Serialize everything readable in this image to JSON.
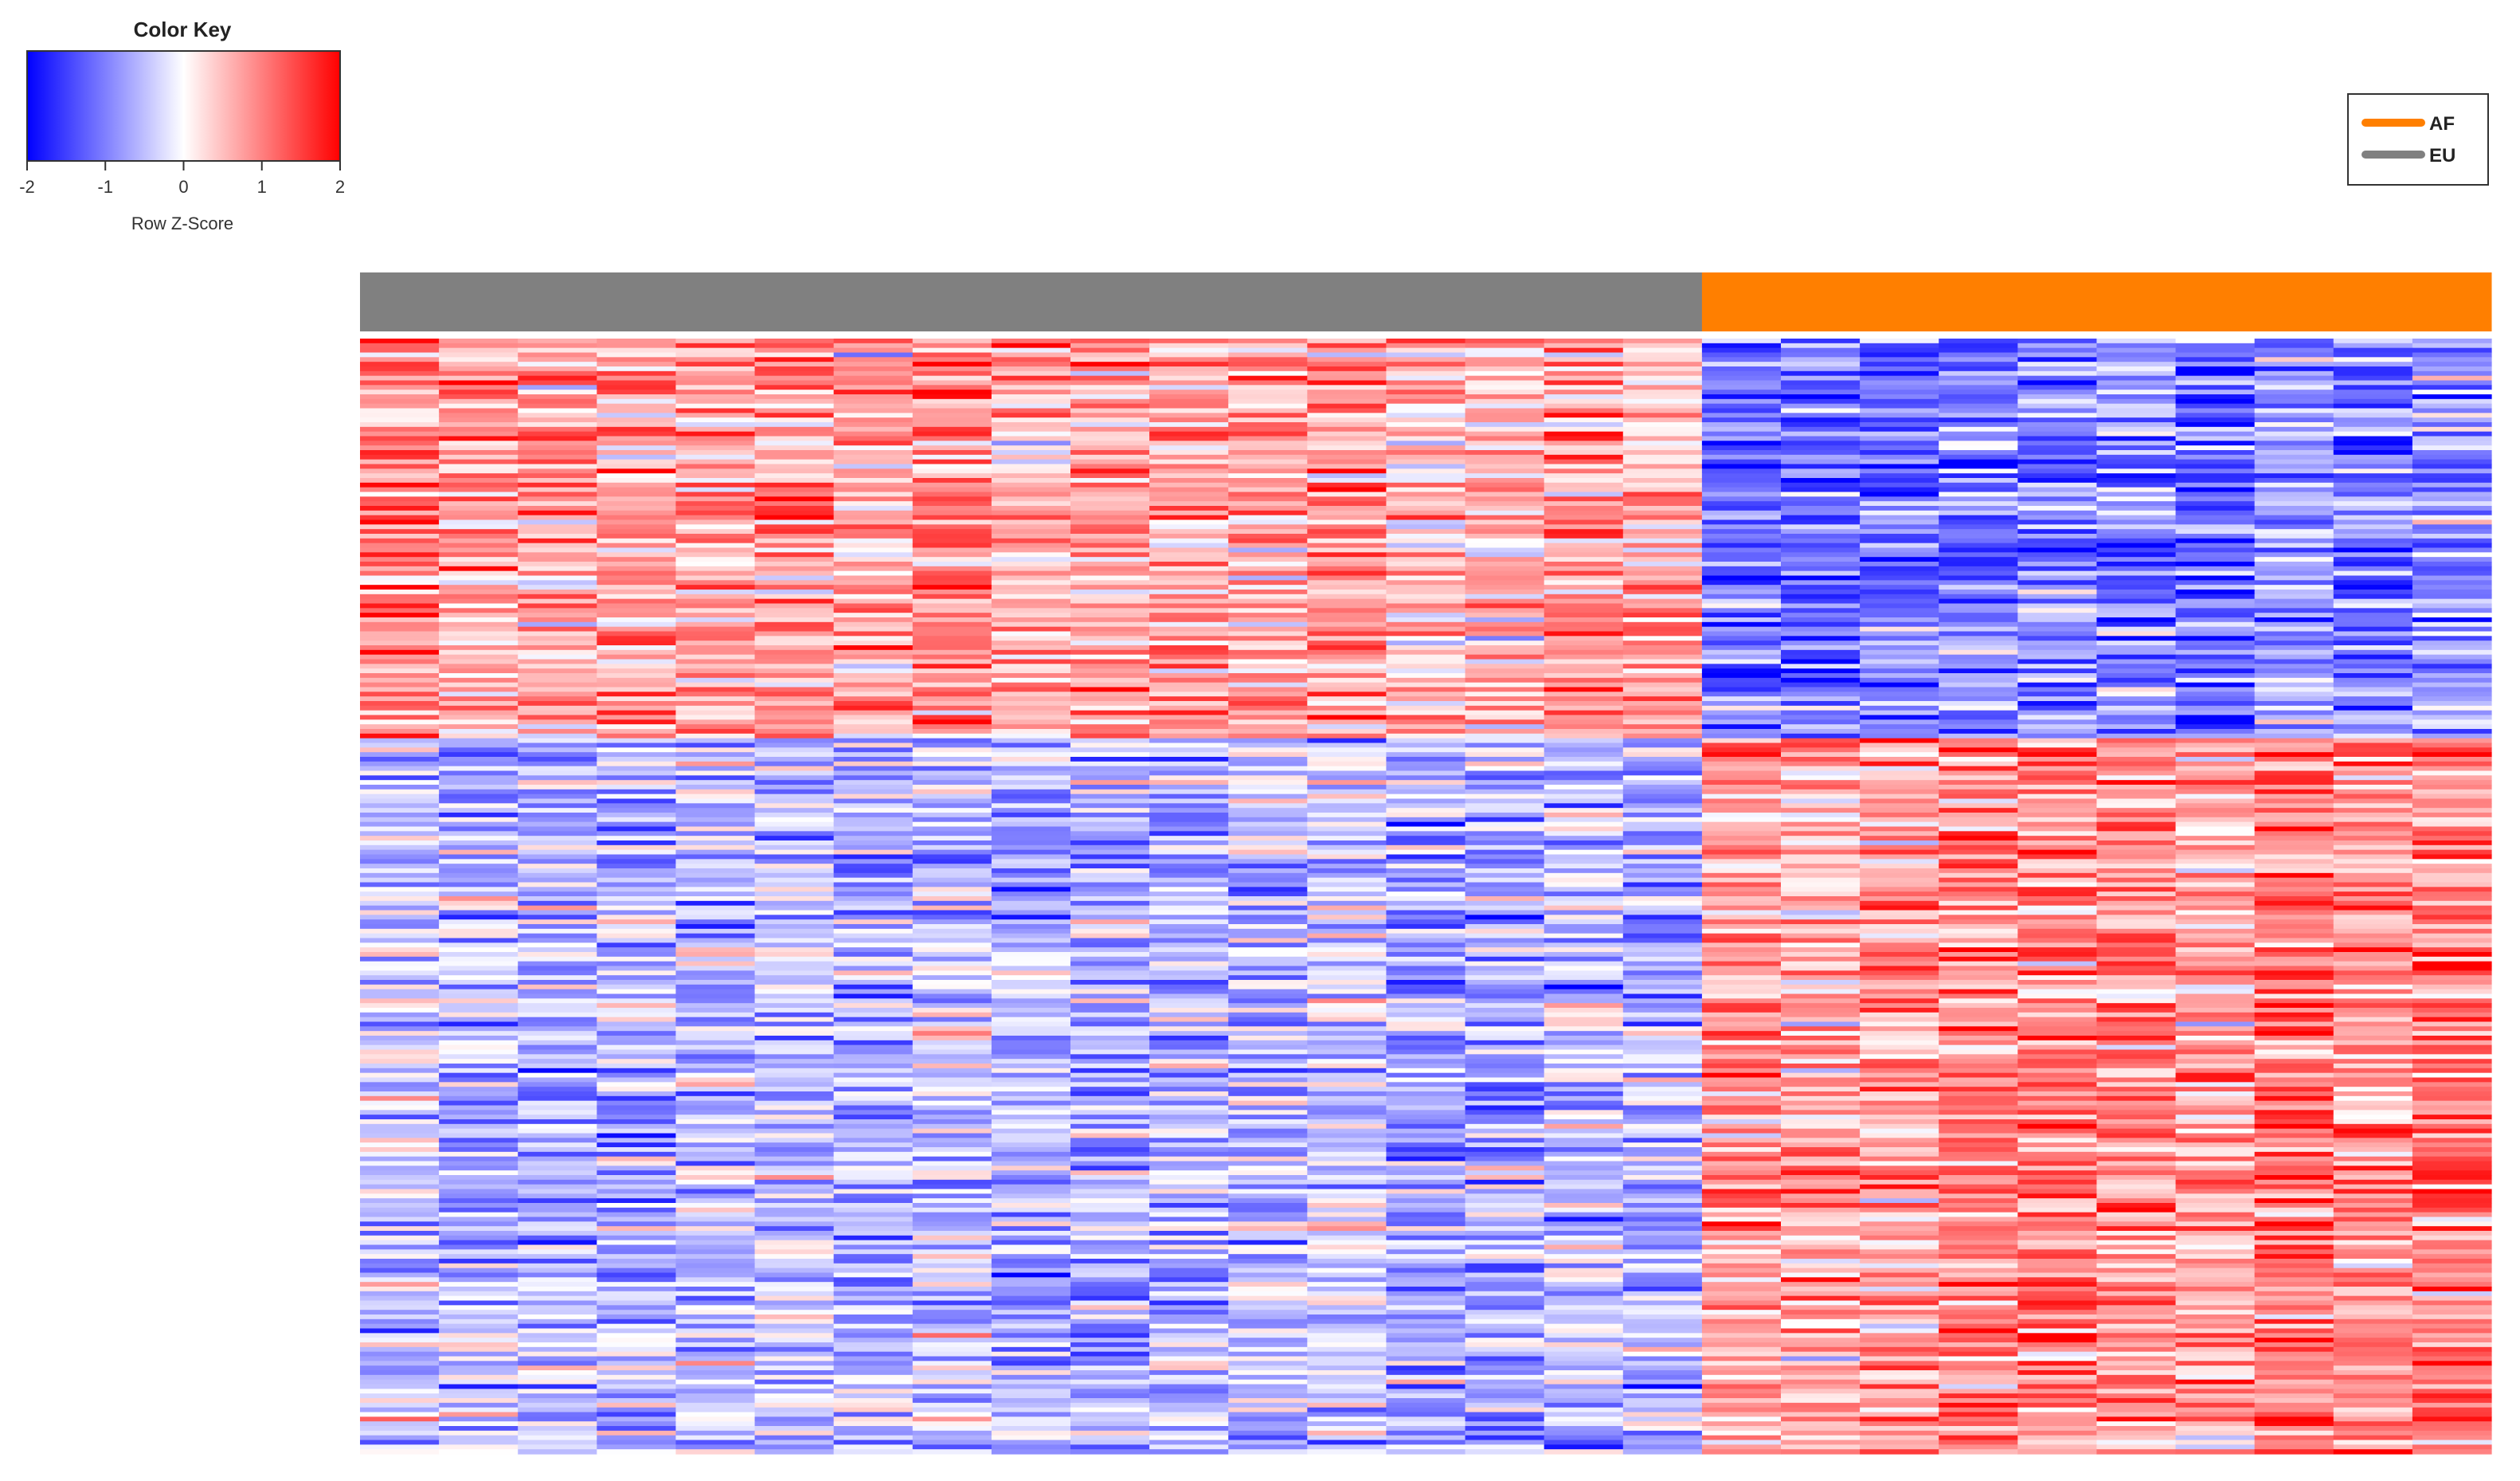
{
  "chart_data": {
    "type": "heatmap",
    "title": "",
    "color_key": {
      "title": "Color Key",
      "xlabel": "Row Z-Score",
      "ticks": [
        "-2",
        "-1",
        "0",
        "1",
        "2"
      ],
      "range": [
        -2,
        2
      ],
      "low_color": "#0000ff",
      "mid_color": "#ffffff",
      "high_color": "#ff0000"
    },
    "legend": {
      "position": "top-right",
      "entries": [
        {
          "label": "AF",
          "color": "#ff7f00"
        },
        {
          "label": "EU",
          "color": "#808080"
        }
      ]
    },
    "groups": [
      {
        "name": "EU",
        "color": "#808080",
        "n_columns": 17
      },
      {
        "name": "AF",
        "color": "#ff7f00",
        "n_columns": 10
      }
    ],
    "n_rows": 240,
    "row_clusters": [
      {
        "rows": 86,
        "EU_mean_z": 0.7,
        "AF_mean_z": -1.0
      },
      {
        "rows": 154,
        "EU_mean_z": -0.5,
        "AF_mean_z": 0.9
      }
    ]
  }
}
